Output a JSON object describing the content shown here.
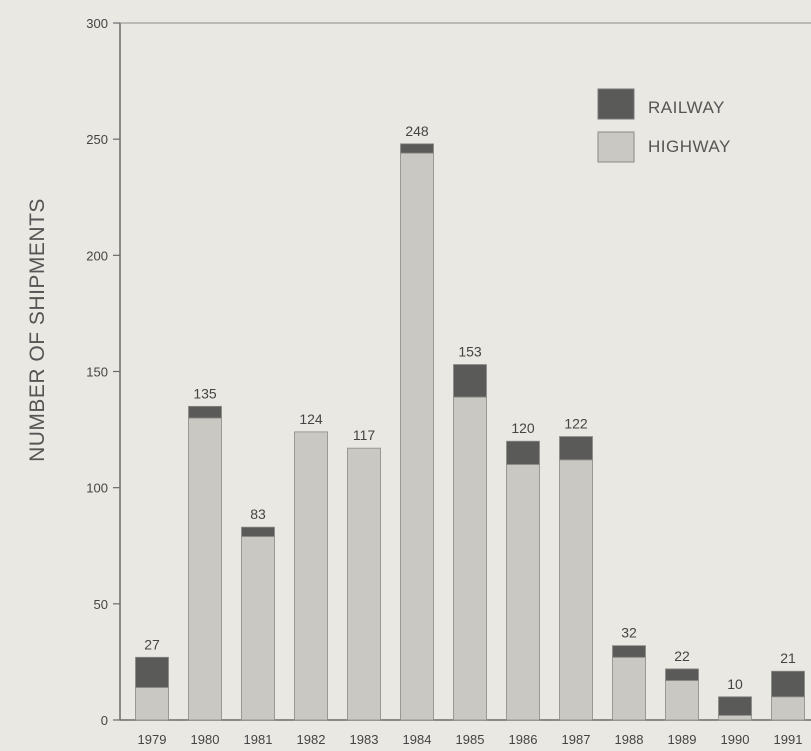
{
  "chart_data": {
    "type": "bar",
    "stacked": true,
    "ylabel": "NUMBER OF SHIPMENTS",
    "ylim": [
      0,
      300
    ],
    "yticks": [
      0,
      50,
      100,
      150,
      200,
      250,
      300
    ],
    "categories": [
      "1979",
      "1980",
      "1981",
      "1982",
      "1983",
      "1984",
      "1985",
      "1986",
      "1987",
      "1988",
      "1989",
      "1990",
      "1991"
    ],
    "totals": [
      27,
      135,
      83,
      124,
      117,
      248,
      153,
      120,
      122,
      32,
      22,
      10,
      21
    ],
    "series": [
      {
        "name": "HIGHWAY",
        "color": "#c9c8c2",
        "values": [
          14,
          130,
          79,
          124,
          117,
          244,
          139,
          110,
          112,
          27,
          17,
          2,
          10
        ]
      },
      {
        "name": "RAILWAY",
        "color": "#5a5a58",
        "values": [
          13,
          5,
          4,
          0,
          0,
          4,
          14,
          10,
          10,
          5,
          5,
          8,
          11
        ]
      }
    ],
    "legend": {
      "position": "top-right",
      "entries": [
        "RAILWAY",
        "HIGHWAY"
      ]
    },
    "grid": false
  }
}
